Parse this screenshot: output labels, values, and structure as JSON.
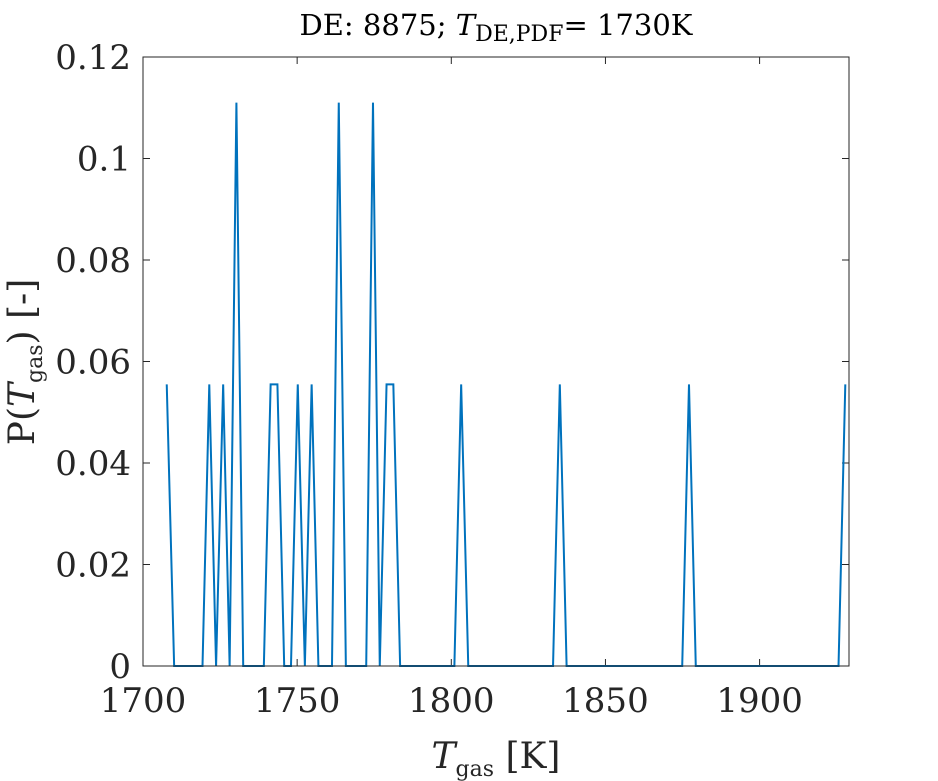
{
  "chart_data": {
    "type": "line",
    "title": {
      "prefix": "DE: 8875; ",
      "var": "T",
      "sub": "DE,PDF",
      "suffix": "= 1730K"
    },
    "xlabel": {
      "var": "T",
      "sub": "gas",
      "unit": " [K]"
    },
    "ylabel": {
      "pre": "P(",
      "var": "T",
      "sub": "gas",
      "post": ") [-]"
    },
    "xlim": [
      1700,
      1929
    ],
    "ylim": [
      0,
      0.12
    ],
    "xticks": [
      1700,
      1750,
      1800,
      1850,
      1900
    ],
    "yticks": [
      0,
      0.02,
      0.04,
      0.06,
      0.08,
      0.1,
      0.12
    ],
    "grid": false,
    "line_color": "#0072BD",
    "series": [
      {
        "x": [
          1707.7,
          1710.1,
          1719.3,
          1721.5,
          1723.7,
          1726.0,
          1728.1,
          1730.3,
          1732.5,
          1739.2,
          1741.4,
          1743.6,
          1745.8,
          1748.0,
          1750.2,
          1752.5,
          1754.7,
          1756.9,
          1761.3,
          1763.5,
          1765.8,
          1772.4,
          1774.6,
          1776.8,
          1779.0,
          1781.2,
          1783.4,
          1801.0,
          1803.2,
          1805.5,
          1833.0,
          1835.2,
          1837.4,
          1874.9,
          1877.1,
          1879.3,
          1925.6,
          1927.8
        ],
        "y": [
          0.0555,
          0,
          0,
          0.0555,
          0,
          0.0555,
          0,
          0.111,
          0,
          0,
          0.0555,
          0.0555,
          0,
          0,
          0.0555,
          0,
          0.0555,
          0,
          0,
          0.111,
          0,
          0,
          0.111,
          0,
          0.0555,
          0.0555,
          0,
          0,
          0.0555,
          0,
          0,
          0.0555,
          0,
          0,
          0.0555,
          0,
          0,
          0.0555
        ]
      }
    ]
  }
}
